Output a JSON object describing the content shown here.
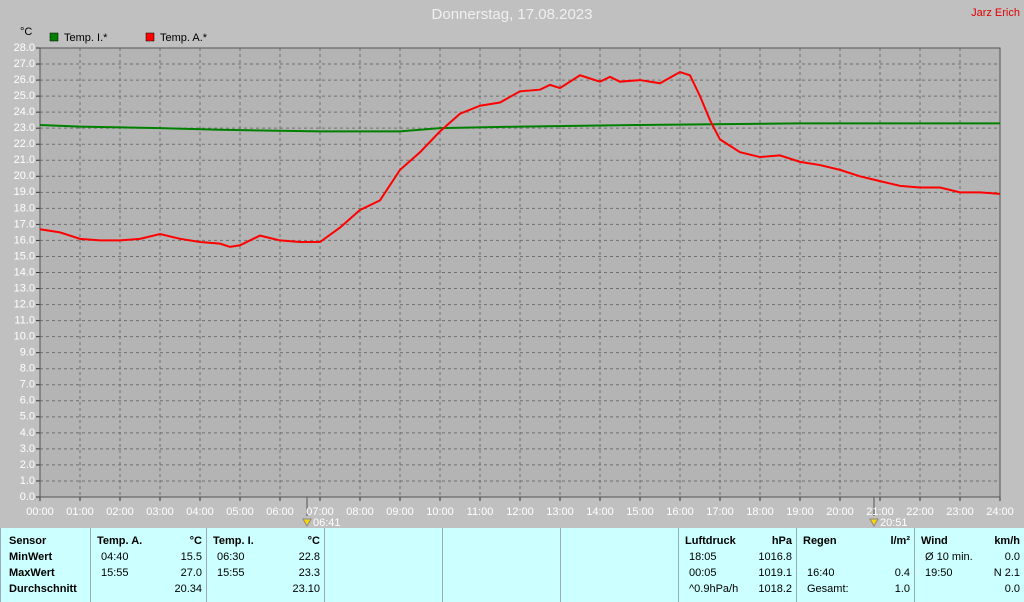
{
  "chart_data": {
    "type": "line",
    "title": "Donnerstag, 17.08.2023",
    "author": "Jarz Erich",
    "y_unit": "°C",
    "sunrise": "06:41",
    "sunset": "20:51",
    "grid": true,
    "xlim": [
      0,
      24
    ],
    "ylim": [
      0,
      28
    ],
    "xticks": [
      {
        "value": 0,
        "label": "00:00"
      },
      {
        "value": 1,
        "label": "01:00"
      },
      {
        "value": 2,
        "label": "02:00"
      },
      {
        "value": 3,
        "label": "03:00"
      },
      {
        "value": 4,
        "label": "04:00"
      },
      {
        "value": 5,
        "label": "05:00"
      },
      {
        "value": 6,
        "label": "06:00"
      },
      {
        "value": 7,
        "label": "07:00"
      },
      {
        "value": 8,
        "label": "08:00"
      },
      {
        "value": 9,
        "label": "09:00"
      },
      {
        "value": 10,
        "label": "10:00"
      },
      {
        "value": 11,
        "label": "11:00"
      },
      {
        "value": 12,
        "label": "12:00"
      },
      {
        "value": 13,
        "label": "13:00"
      },
      {
        "value": 14,
        "label": "14:00"
      },
      {
        "value": 15,
        "label": "15:00"
      },
      {
        "value": 16,
        "label": "16:00"
      },
      {
        "value": 17,
        "label": "17:00"
      },
      {
        "value": 18,
        "label": "18:00"
      },
      {
        "value": 19,
        "label": "19:00"
      },
      {
        "value": 20,
        "label": "20:00"
      },
      {
        "value": 21,
        "label": "21:00"
      },
      {
        "value": 22,
        "label": "22:00"
      },
      {
        "value": 23,
        "label": "23:00"
      },
      {
        "value": 24,
        "label": "24:00"
      }
    ],
    "yticks": [
      {
        "value": 0,
        "label": "0.0"
      },
      {
        "value": 1,
        "label": "1.0"
      },
      {
        "value": 2,
        "label": "2.0"
      },
      {
        "value": 3,
        "label": "3.0"
      },
      {
        "value": 4,
        "label": "4.0"
      },
      {
        "value": 5,
        "label": "5.0"
      },
      {
        "value": 6,
        "label": "6.0"
      },
      {
        "value": 7,
        "label": "7.0"
      },
      {
        "value": 8,
        "label": "8.0"
      },
      {
        "value": 9,
        "label": "9.0"
      },
      {
        "value": 10,
        "label": "10.0"
      },
      {
        "value": 11,
        "label": "11.0"
      },
      {
        "value": 12,
        "label": "12.0"
      },
      {
        "value": 13,
        "label": "13.0"
      },
      {
        "value": 14,
        "label": "14.0"
      },
      {
        "value": 15,
        "label": "15.0"
      },
      {
        "value": 16,
        "label": "16.0"
      },
      {
        "value": 17,
        "label": "17.0"
      },
      {
        "value": 18,
        "label": "18.0"
      },
      {
        "value": 19,
        "label": "19.0"
      },
      {
        "value": 20,
        "label": "20.0"
      },
      {
        "value": 21,
        "label": "21.0"
      },
      {
        "value": 22,
        "label": "22.0"
      },
      {
        "value": 23,
        "label": "23.0"
      },
      {
        "value": 24,
        "label": "24.0"
      },
      {
        "value": 25,
        "label": "25.0"
      },
      {
        "value": 26,
        "label": "26.0"
      },
      {
        "value": 27,
        "label": "27.0"
      },
      {
        "value": 28,
        "label": "28.0"
      }
    ],
    "series": [
      {
        "name": "Temp. I.*",
        "color": "#008000",
        "x": [
          0,
          1,
          3,
          4.5,
          7,
          8,
          9,
          10,
          12,
          15,
          19,
          24
        ],
        "values": [
          23.2,
          23.1,
          23.0,
          22.9,
          22.8,
          22.8,
          22.8,
          23.0,
          23.1,
          23.2,
          23.3,
          23.3
        ]
      },
      {
        "name": "Temp. A.*",
        "color": "#ff0000",
        "x": [
          0,
          0.5,
          1,
          1.5,
          2,
          2.5,
          3,
          3.5,
          4,
          4.5,
          4.75,
          5,
          5.5,
          6,
          6.5,
          7,
          7.5,
          8,
          8.5,
          9,
          9.5,
          10,
          10.5,
          11,
          11.5,
          12,
          12.5,
          12.75,
          13,
          13.5,
          14,
          14.25,
          14.5,
          15,
          15.5,
          16,
          16.25,
          16.5,
          16.75,
          17,
          17.5,
          18,
          18.5,
          19,
          19.5,
          20,
          20.5,
          21,
          21.5,
          22,
          22.5,
          23,
          23.5,
          24
        ],
        "values": [
          16.7,
          16.5,
          16.1,
          16.0,
          16.0,
          16.1,
          16.4,
          16.1,
          15.9,
          15.8,
          15.6,
          15.7,
          16.3,
          16.0,
          15.9,
          15.9,
          16.8,
          17.9,
          18.5,
          20.4,
          21.5,
          22.8,
          23.9,
          24.4,
          24.6,
          25.3,
          25.4,
          25.7,
          25.5,
          26.3,
          25.9,
          26.2,
          25.9,
          26.0,
          25.8,
          26.5,
          26.3,
          25.0,
          23.5,
          22.3,
          21.5,
          21.2,
          21.3,
          20.9,
          20.7,
          20.4,
          20.0,
          19.7,
          19.4,
          19.3,
          19.3,
          19.0,
          19.0,
          18.9
        ]
      }
    ]
  },
  "stats": [
    {
      "header": [
        "Sensor"
      ],
      "rows": [
        [
          "MinWert"
        ],
        [
          "MaxWert"
        ],
        [
          "Durchschnitt"
        ]
      ]
    },
    {
      "header": [
        "Temp. A.",
        "°C"
      ],
      "rows": [
        [
          "04:40",
          "15.5"
        ],
        [
          "15:55",
          "27.0"
        ],
        [
          "20.34"
        ]
      ]
    },
    {
      "header": [
        "Temp. I.",
        "°C"
      ],
      "rows": [
        [
          "06:30",
          "22.8"
        ],
        [
          "15:55",
          "23.3"
        ],
        [
          "23.10"
        ]
      ]
    },
    {
      "header": [
        "Luftdruck",
        "hPa"
      ],
      "rows": [
        [
          "18:05",
          "1016.8"
        ],
        [
          "00:05",
          "1019.1"
        ],
        [
          "^0.9hPa/h",
          "1018.2"
        ]
      ]
    },
    {
      "header": [
        "Regen",
        "l/m²"
      ],
      "rows": [
        null,
        [
          "16:40",
          "0.4"
        ],
        [
          "Gesamt:",
          "1.0"
        ]
      ]
    },
    {
      "header": [
        "Wind",
        "km/h"
      ],
      "rows": [
        [
          "Ø 10 min.",
          "0.0"
        ],
        [
          "19:50",
          "N 2.1"
        ],
        [
          "0.0"
        ]
      ]
    }
  ]
}
